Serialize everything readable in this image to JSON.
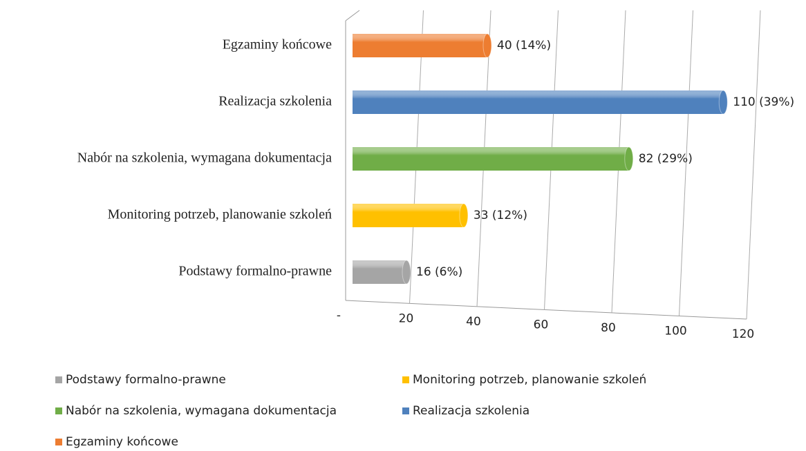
{
  "chart_data": {
    "type": "bar",
    "orientation": "horizontal",
    "categories": [
      "Podstawy formalno-prawne",
      "Monitoring potrzeb, planowanie szkoleń",
      "Nabór na szkolenia, wymagana dokumentacja",
      "Realizacja szkolenia",
      "Egzaminy końcowe"
    ],
    "values": [
      16,
      33,
      82,
      110,
      40
    ],
    "value_labels": [
      "16 (6%)",
      "33 (12%)",
      "82 (29%)",
      "110 (39%)",
      "40 (14%)"
    ],
    "colors": [
      "#a5a5a5",
      "#ffc000",
      "#70ad47",
      "#4f81bd",
      "#ed7d31"
    ],
    "xlim": [
      0,
      120
    ],
    "xticks": [
      {
        "value": 0,
        "label": "-"
      },
      20,
      40,
      60,
      80,
      100,
      120
    ],
    "grid": true,
    "legend": "bottom"
  }
}
